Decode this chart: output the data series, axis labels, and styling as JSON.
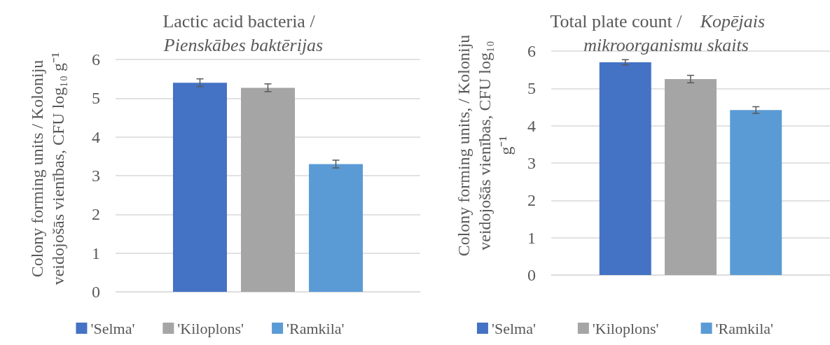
{
  "chart_data": [
    {
      "type": "bar",
      "title": "Lactic acid bacteria / Pienskābes baktērijas",
      "ylabel": "Colony forming units / Koloniju veidojošās vienības, CFU log₁₀ g⁻¹",
      "categories": [
        null
      ],
      "ylim": [
        0,
        6
      ],
      "yticks": [
        0,
        1,
        2,
        3,
        4,
        5,
        6
      ],
      "grid": "y",
      "legend": "bottom",
      "series": [
        {
          "name": "'Selma'",
          "color": "#4472c4",
          "values": [
            5.4
          ],
          "errors": [
            0.1
          ]
        },
        {
          "name": "'Kiloplons'",
          "color": "#a5a5a5",
          "values": [
            5.27
          ],
          "errors": [
            0.1
          ]
        },
        {
          "name": "'Ramkila'",
          "color": "#5b9bd5",
          "values": [
            3.3
          ],
          "errors": [
            0.1
          ]
        }
      ]
    },
    {
      "type": "bar",
      "title": "Total plate count / Kopējais mikroorganismu skaits",
      "ylabel": "Colony forming units, / Koloniju veidojošās vienības, CFU log₁₀ g⁻¹",
      "categories": [
        null
      ],
      "ylim": [
        0,
        6
      ],
      "yticks": [
        0,
        1,
        2,
        3,
        4,
        5,
        6
      ],
      "grid": "y",
      "legend": "bottom",
      "series": [
        {
          "name": "'Selma'",
          "color": "#4472c4",
          "values": [
            5.7
          ],
          "errors": [
            0.07
          ]
        },
        {
          "name": "'Kiloplons'",
          "color": "#a5a5a5",
          "values": [
            5.25
          ],
          "errors": [
            0.1
          ]
        },
        {
          "name": "'Ramkila'",
          "color": "#5b9bd5",
          "values": [
            4.42
          ],
          "errors": [
            0.09
          ]
        }
      ]
    }
  ]
}
